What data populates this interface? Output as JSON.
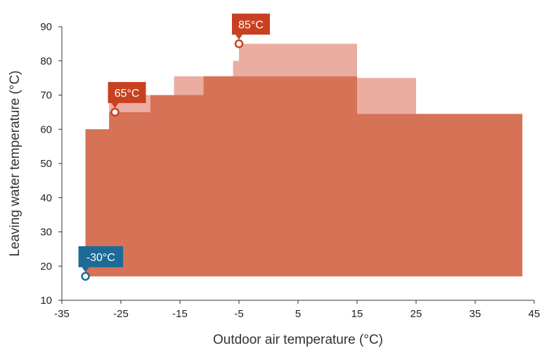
{
  "chart_data": {
    "type": "area",
    "title": "",
    "xlabel": "Outdoor air temperature (°C)",
    "ylabel": "Leaving water temperature (°C)",
    "xlim": [
      -35,
      45
    ],
    "ylim": [
      10,
      90
    ],
    "x_ticks": [
      "-35",
      "-25",
      "-15",
      "-5",
      "5",
      "15",
      "25",
      "35",
      "45"
    ],
    "y_ticks": [
      "10",
      "20",
      "30",
      "40",
      "50",
      "60",
      "70",
      "80",
      "90"
    ],
    "grid": false,
    "colors": {
      "base": "#d67256",
      "extended": "#ebada2",
      "callout_red": "#c8401f",
      "callout_blue": "#1c6b96",
      "axis": "#333333"
    },
    "series": [
      {
        "role": "extended",
        "bottom": 17,
        "x": [
          -31,
          -27,
          -27,
          -16,
          -16,
          -6,
          -6,
          -5,
          -5,
          15,
          15,
          25,
          25,
          43
        ],
        "y": [
          60,
          60,
          70,
          70,
          75.5,
          75.5,
          80,
          80,
          85,
          85,
          75,
          75,
          64.5,
          64.5
        ]
      },
      {
        "role": "base",
        "bottom": 17,
        "x": [
          -31,
          -27,
          -27,
          -20,
          -20,
          -11,
          -11,
          -5,
          -5,
          15,
          15,
          43
        ],
        "y": [
          60,
          60,
          65,
          65,
          70,
          70,
          75.5,
          75.5,
          75.5,
          75.5,
          64.5,
          64.5
        ]
      }
    ],
    "annotations": [
      {
        "label": "-30°C",
        "x": -31,
        "y": 17,
        "color": "blue"
      },
      {
        "label": "65°C",
        "x": -26,
        "y": 65,
        "color": "red"
      },
      {
        "label": "85°C",
        "x": -5,
        "y": 85,
        "color": "red"
      }
    ]
  }
}
